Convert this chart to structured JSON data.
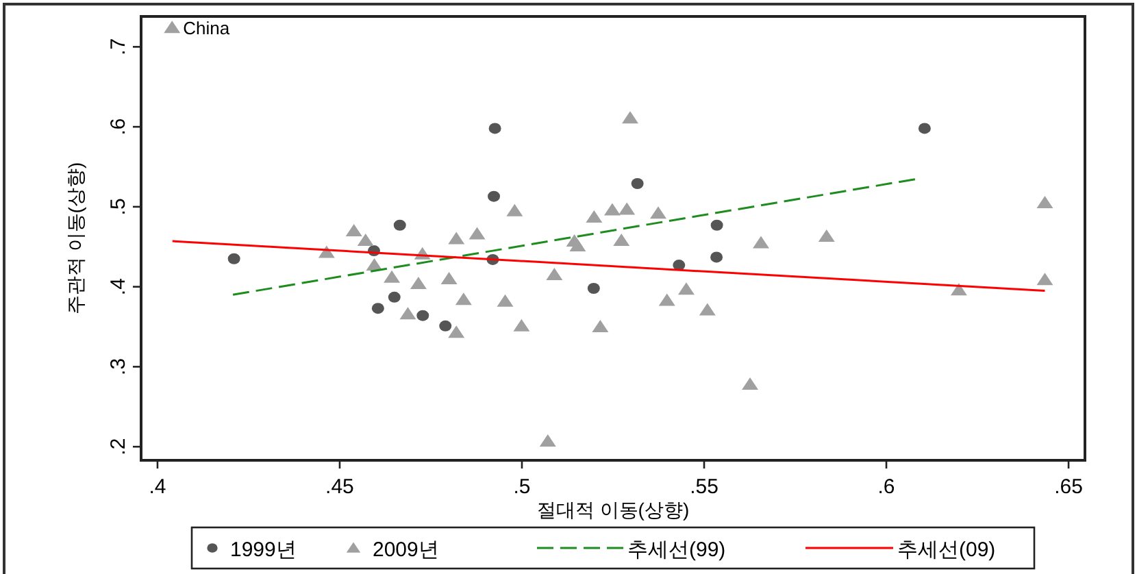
{
  "chart_data": {
    "type": "scatter",
    "xlabel": "절대적 이동(상향)",
    "ylabel": "주관적 이동(상향)",
    "xlim": [
      0.3955,
      0.6545
    ],
    "ylim": [
      0.183,
      0.738
    ],
    "xticks": [
      {
        "value": 0.4,
        "label": ".4"
      },
      {
        "value": 0.45,
        "label": ".45"
      },
      {
        "value": 0.5,
        "label": ".5"
      },
      {
        "value": 0.55,
        "label": ".55"
      },
      {
        "value": 0.6,
        "label": ".6"
      },
      {
        "value": 0.65,
        "label": ".65"
      }
    ],
    "yticks": [
      {
        "value": 0.2,
        "label": ".2"
      },
      {
        "value": 0.3,
        "label": ".3"
      },
      {
        "value": 0.4,
        "label": ".4"
      },
      {
        "value": 0.5,
        "label": ".5"
      },
      {
        "value": 0.6,
        "label": ".6"
      },
      {
        "value": 0.7,
        "label": ".7"
      }
    ],
    "grid": false,
    "legend": "bottom",
    "annotations": [
      {
        "text": "China",
        "x": 0.404,
        "y": 0.724
      }
    ],
    "series": [
      {
        "name": "1999년",
        "marker": "circle",
        "color": "#555555",
        "x": [
          0.421,
          0.4594,
          0.4605,
          0.465,
          0.4665,
          0.4728,
          0.479,
          0.4926,
          0.4923,
          0.492,
          0.5317,
          0.5197,
          0.5431,
          0.5535,
          0.5534,
          0.6105
        ],
        "values": [
          0.435,
          0.445,
          0.373,
          0.387,
          0.477,
          0.364,
          0.351,
          0.598,
          0.513,
          0.434,
          0.529,
          0.398,
          0.427,
          0.477,
          0.437,
          0.598
        ]
      },
      {
        "name": "2009년",
        "marker": "triangle",
        "color": "#a0a0a0",
        "x": [
          0.404,
          0.4539,
          0.4571,
          0.4464,
          0.4727,
          0.4595,
          0.482,
          0.4877,
          0.4643,
          0.4716,
          0.48,
          0.484,
          0.4687,
          0.482,
          0.5297,
          0.498,
          0.5198,
          0.5248,
          0.5288,
          0.5374,
          0.5144,
          0.5153,
          0.5273,
          0.5656,
          0.5089,
          0.4954,
          0.5451,
          0.5398,
          0.5509,
          0.4999,
          0.5215,
          0.5626,
          0.5071,
          0.5836,
          0.6435,
          0.6435,
          0.6199
        ],
        "values": [
          0.724,
          0.47,
          0.458,
          0.443,
          0.441,
          0.427,
          0.46,
          0.466,
          0.412,
          0.404,
          0.41,
          0.384,
          0.366,
          0.343,
          0.611,
          0.495,
          0.487,
          0.496,
          0.497,
          0.492,
          0.457,
          0.451,
          0.458,
          0.455,
          0.415,
          0.382,
          0.397,
          0.383,
          0.371,
          0.351,
          0.35,
          0.278,
          0.207,
          0.463,
          0.505,
          0.409,
          0.396
        ]
      },
      {
        "name": "추세선(99)",
        "type": "line",
        "marker": "none",
        "line_style": "dashed",
        "color": "#1e8c1e",
        "x": [
          0.4207,
          0.6086
        ],
        "values": [
          0.39,
          0.535
        ]
      },
      {
        "name": "추세선(09)",
        "type": "line",
        "marker": "none",
        "line_style": "solid",
        "color": "#ff0000",
        "x": [
          0.4041,
          0.6435
        ],
        "values": [
          0.457,
          0.395
        ]
      }
    ]
  }
}
